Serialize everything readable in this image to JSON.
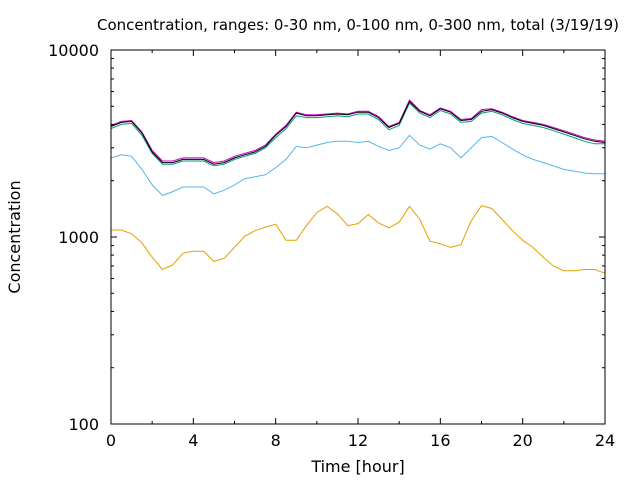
{
  "chart_data": {
    "type": "line",
    "title": "Concentration, ranges: 0-30 nm, 0-100 nm, 0-300 nm, total (3/19/19)",
    "xlabel": "Time [hour]",
    "ylabel": "Concentration",
    "xlim": [
      0,
      24
    ],
    "ylim": [
      100,
      10000
    ],
    "yscale": "log",
    "xticks": [
      "0",
      "4",
      "8",
      "12",
      "16",
      "20",
      "24"
    ],
    "yticks": [
      "100",
      "1000",
      "10000"
    ],
    "grid": false,
    "legend": "none",
    "series": [
      {
        "color": "#e69f00",
        "x": [
          0,
          0.5,
          1,
          1.5,
          2,
          2.5,
          3,
          3.5,
          4,
          4.5,
          5,
          5.5,
          6,
          6.5,
          7,
          7.5,
          8,
          8.5,
          9,
          9.5,
          10,
          10.5,
          11,
          11.5,
          12,
          12.5,
          13,
          13.5,
          14,
          14.5,
          15,
          15.5,
          16,
          16.5,
          17,
          17.5,
          18,
          18.5,
          19,
          19.5,
          20,
          20.5,
          21,
          21.5,
          22,
          22.5,
          23,
          23.5,
          24
        ],
        "y": [
          1090,
          1090,
          1040,
          930,
          780,
          670,
          710,
          820,
          840,
          840,
          740,
          770,
          880,
          1010,
          1080,
          1130,
          1170,
          960,
          960,
          1150,
          1350,
          1460,
          1330,
          1150,
          1180,
          1320,
          1190,
          1120,
          1200,
          1460,
          1240,
          950,
          920,
          880,
          910,
          1220,
          1470,
          1420,
          1240,
          1080,
          960,
          880,
          780,
          700,
          660,
          660,
          670,
          670,
          640
        ]
      },
      {
        "color": "#56b4e9",
        "x": [
          0,
          0.5,
          1,
          1.5,
          2,
          2.5,
          3,
          3.5,
          4,
          4.5,
          5,
          5.5,
          6,
          6.5,
          7,
          7.5,
          8,
          8.5,
          9,
          9.5,
          10,
          10.5,
          11,
          11.5,
          12,
          12.5,
          13,
          13.5,
          14,
          14.5,
          15,
          15.5,
          16,
          16.5,
          17,
          17.5,
          18,
          18.5,
          19,
          19.5,
          20,
          20.5,
          21,
          21.5,
          22,
          22.5,
          23,
          23.5,
          24
        ],
        "y": [
          2650,
          2750,
          2700,
          2300,
          1900,
          1670,
          1750,
          1850,
          1850,
          1850,
          1700,
          1780,
          1900,
          2050,
          2100,
          2150,
          2350,
          2600,
          3050,
          3000,
          3100,
          3200,
          3250,
          3250,
          3200,
          3250,
          3050,
          2900,
          3000,
          3500,
          3100,
          2950,
          3150,
          3000,
          2650,
          3000,
          3400,
          3450,
          3200,
          2950,
          2750,
          2600,
          2500,
          2400,
          2300,
          2250,
          2200,
          2180,
          2180
        ]
      },
      {
        "color": "#009e73",
        "x": [
          0,
          0.5,
          1,
          1.5,
          2,
          2.5,
          3,
          3.5,
          4,
          4.5,
          5,
          5.5,
          6,
          6.5,
          7,
          7.5,
          8,
          8.5,
          9,
          9.5,
          10,
          10.5,
          11,
          11.5,
          12,
          12.5,
          13,
          13.5,
          14,
          14.5,
          15,
          15.5,
          16,
          16.5,
          17,
          17.5,
          18,
          18.5,
          19,
          19.5,
          20,
          20.5,
          21,
          21.5,
          22,
          22.5,
          23,
          23.5,
          24
        ],
        "y": [
          3800,
          4000,
          4050,
          3500,
          2800,
          2450,
          2450,
          2550,
          2550,
          2550,
          2400,
          2450,
          2600,
          2700,
          2800,
          3000,
          3400,
          3800,
          4450,
          4350,
          4350,
          4400,
          4450,
          4400,
          4550,
          4550,
          4250,
          3750,
          3950,
          5200,
          4600,
          4350,
          4750,
          4550,
          4100,
          4150,
          4600,
          4700,
          4500,
          4250,
          4050,
          3950,
          3850,
          3700,
          3550,
          3400,
          3250,
          3150,
          3150
        ]
      },
      {
        "color": "#cc00cc",
        "x": [
          0,
          0.5,
          1,
          1.5,
          2,
          2.5,
          3,
          3.5,
          4,
          4.5,
          5,
          5.5,
          6,
          6.5,
          7,
          7.5,
          8,
          8.5,
          9,
          9.5,
          10,
          10.5,
          11,
          11.5,
          12,
          12.5,
          13,
          13.5,
          14,
          14.5,
          15,
          15.5,
          16,
          16.5,
          17,
          17.5,
          18,
          18.5,
          19,
          19.5,
          20,
          20.5,
          21,
          21.5,
          22,
          22.5,
          23,
          23.5,
          24
        ],
        "y": [
          3950,
          4150,
          4200,
          3650,
          2900,
          2550,
          2550,
          2650,
          2650,
          2650,
          2500,
          2550,
          2700,
          2800,
          2900,
          3100,
          3550,
          3950,
          4650,
          4500,
          4500,
          4550,
          4600,
          4550,
          4700,
          4700,
          4400,
          3900,
          4100,
          5400,
          4750,
          4500,
          4900,
          4700,
          4250,
          4300,
          4800,
          4850,
          4650,
          4400,
          4200,
          4100,
          4000,
          3850,
          3700,
          3550,
          3400,
          3300,
          3250
        ]
      },
      {
        "color": "#000000",
        "x": [
          0,
          0.5,
          1,
          1.5,
          2,
          2.5,
          3,
          3.5,
          4,
          4.5,
          5,
          5.5,
          6,
          6.5,
          7,
          7.5,
          8,
          8.5,
          9,
          9.5,
          10,
          10.5,
          11,
          11.5,
          12,
          12.5,
          13,
          13.5,
          14,
          14.5,
          15,
          15.5,
          16,
          16.5,
          17,
          17.5,
          18,
          18.5,
          19,
          19.5,
          20,
          20.5,
          21,
          21.5,
          22,
          22.5,
          23,
          23.5,
          24
        ],
        "y": [
          3900,
          4100,
          4150,
          3600,
          2850,
          2500,
          2500,
          2600,
          2600,
          2600,
          2450,
          2500,
          2650,
          2750,
          2850,
          3050,
          3500,
          3900,
          4600,
          4450,
          4450,
          4500,
          4550,
          4500,
          4650,
          4650,
          4350,
          3850,
          4050,
          5300,
          4700,
          4450,
          4850,
          4650,
          4200,
          4250,
          4700,
          4800,
          4600,
          4350,
          4150,
          4050,
          3950,
          3800,
          3650,
          3500,
          3350,
          3250,
          3200
        ]
      }
    ]
  }
}
